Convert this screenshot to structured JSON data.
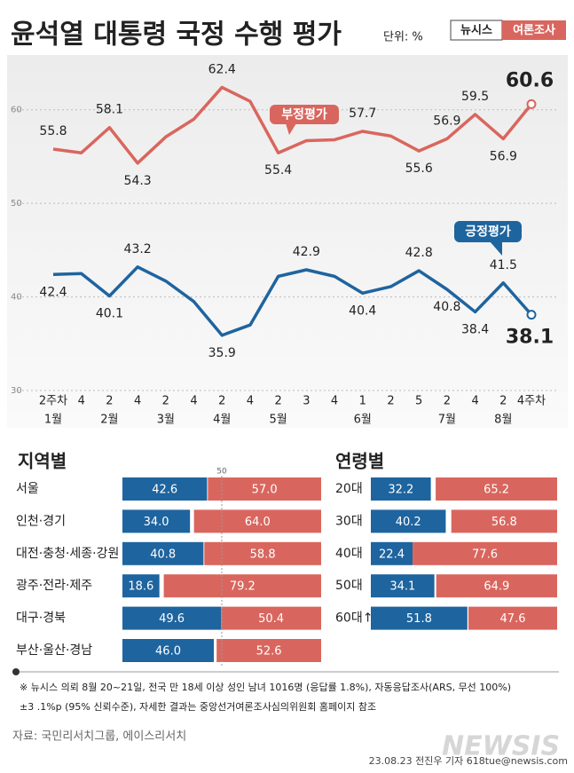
{
  "title": "윤석열 대통령 국정 수행 평가",
  "unit": "단위: %",
  "logo": {
    "brand": "뉴시스",
    "tag": "여론조사"
  },
  "chart_data": [
    {
      "type": "line",
      "categories": [
        "2주차",
        "4",
        "2",
        "4",
        "2",
        "4",
        "2",
        "4",
        "2",
        "3",
        "4",
        "1",
        "2",
        "5",
        "2",
        "4",
        "2",
        "4주차"
      ],
      "months": [
        "1월",
        null,
        "2월",
        null,
        "3월",
        null,
        "4월",
        null,
        "5월",
        null,
        null,
        "6월",
        null,
        null,
        "7월",
        null,
        "8월",
        null
      ],
      "ylim": [
        30,
        65
      ],
      "yticks": [
        30,
        40,
        50,
        60
      ],
      "grid": true,
      "series": [
        {
          "name": "부정평가",
          "color": "#d9665e",
          "values": [
            55.8,
            55.4,
            58.1,
            54.3,
            57.1,
            59.0,
            62.4,
            60.9,
            55.4,
            56.7,
            56.8,
            57.7,
            57.2,
            55.6,
            56.9,
            59.5,
            56.9,
            60.6
          ],
          "value_labels": [
            "55.8",
            null,
            "58.1",
            "54.3",
            null,
            null,
            "62.4",
            null,
            "55.4",
            null,
            null,
            "57.7",
            null,
            "55.6",
            "56.9",
            "59.5",
            "56.9",
            "60.6"
          ]
        },
        {
          "name": "긍정평가",
          "color": "#1e649f",
          "values": [
            42.4,
            42.5,
            40.1,
            43.2,
            41.7,
            39.5,
            35.9,
            37.0,
            42.2,
            42.9,
            42.2,
            40.4,
            41.1,
            42.8,
            40.8,
            38.4,
            41.5,
            38.1
          ],
          "value_labels": [
            "42.4",
            null,
            "40.1",
            "43.2",
            null,
            null,
            "35.9",
            null,
            null,
            "42.9",
            null,
            "40.4",
            null,
            "42.8",
            "40.8",
            "38.4",
            "41.5",
            "38.1"
          ]
        }
      ]
    },
    {
      "type": "bar",
      "orientation": "horizontal",
      "stacked": true,
      "title": "지역별",
      "categories": [
        "서울",
        "인천·경기",
        "대전·충청·세종·강원",
        "광주·전라·제주",
        "대구·경북",
        "부산·울산·경남"
      ],
      "xlim": [
        0,
        100
      ],
      "xticks": [
        50
      ],
      "series": [
        {
          "color": "#1e649f",
          "values": [
            42.6,
            34.0,
            40.8,
            18.6,
            49.6,
            46.0
          ],
          "value_labels": [
            "42.6",
            "34.0",
            "40.8",
            "18.6",
            "49.6",
            "46.0"
          ]
        },
        {
          "color": "#d9665e",
          "values": [
            57.0,
            64.0,
            58.8,
            79.2,
            50.4,
            52.6
          ],
          "value_labels": [
            "57.0",
            "64.0",
            "58.8",
            "79.2",
            "50.4",
            "52.6"
          ]
        }
      ]
    },
    {
      "type": "bar",
      "orientation": "horizontal",
      "stacked": true,
      "title": "연령별",
      "categories": [
        "20대",
        "30대",
        "40대",
        "50대",
        "60대↑"
      ],
      "xlim": [
        0,
        100
      ],
      "series": [
        {
          "color": "#1e649f",
          "values": [
            32.2,
            40.2,
            22.4,
            34.1,
            51.8
          ],
          "value_labels": [
            "32.2",
            "40.2",
            "22.4",
            "34.1",
            "51.8"
          ]
        },
        {
          "color": "#d9665e",
          "values": [
            65.2,
            56.8,
            77.6,
            64.9,
            47.6
          ],
          "value_labels": [
            "65.2",
            "56.8",
            "77.6",
            "64.9",
            "47.6"
          ]
        }
      ]
    }
  ],
  "footnote": [
    "※  뉴시스 의뢰 8월 20~21일, 전국 만 18세 이상 성인 남녀 1016명 (응답률 1.8%), 자동응답조사(ARS, 무선 100%)",
    "±3 .1%p (95% 신뢰수준), 자세한 결과는 중앙선거여론조사심의위원회 홈페이지 참조"
  ],
  "source": "자료: 국민리서치그룹, 에이스리서치",
  "watermark": "NEWSIS",
  "credit": "23.08.23 전진우 기자 618tue@newsis.com"
}
